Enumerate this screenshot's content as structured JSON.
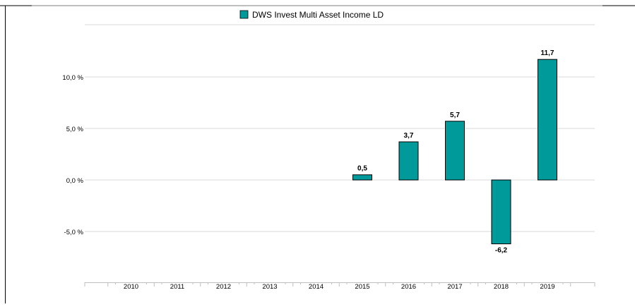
{
  "chart_data": {
    "type": "bar",
    "legend": {
      "label": "DWS Invest Multi Asset Income  LD",
      "position": "top-center"
    },
    "series": [
      {
        "name": "DWS Invest Multi Asset Income  LD",
        "values": [
          null,
          null,
          null,
          null,
          null,
          0.5,
          3.7,
          5.7,
          -6.2,
          11.7
        ]
      }
    ],
    "categories": [
      "2010",
      "2011",
      "2012",
      "2013",
      "2014",
      "2015",
      "2016",
      "2017",
      "2018",
      "2019"
    ],
    "data_labels": [
      "",
      "",
      "",
      "",
      "",
      "0,5",
      "3,7",
      "5,7",
      "-6,2",
      "11,7"
    ],
    "y_ticks": [
      {
        "value": 10,
        "label": "10,0 %"
      },
      {
        "value": 5,
        "label": "5,0 %"
      },
      {
        "value": 0,
        "label": "0,0 %"
      },
      {
        "value": -5,
        "label": "-5,0 %"
      }
    ],
    "ylim": [
      -9.5,
      15
    ],
    "grid": true,
    "colors": {
      "bar": "#009a9a",
      "bar_stroke": "#000000",
      "grid": "#d9d9d9",
      "axis": "#bfbfbf"
    }
  }
}
